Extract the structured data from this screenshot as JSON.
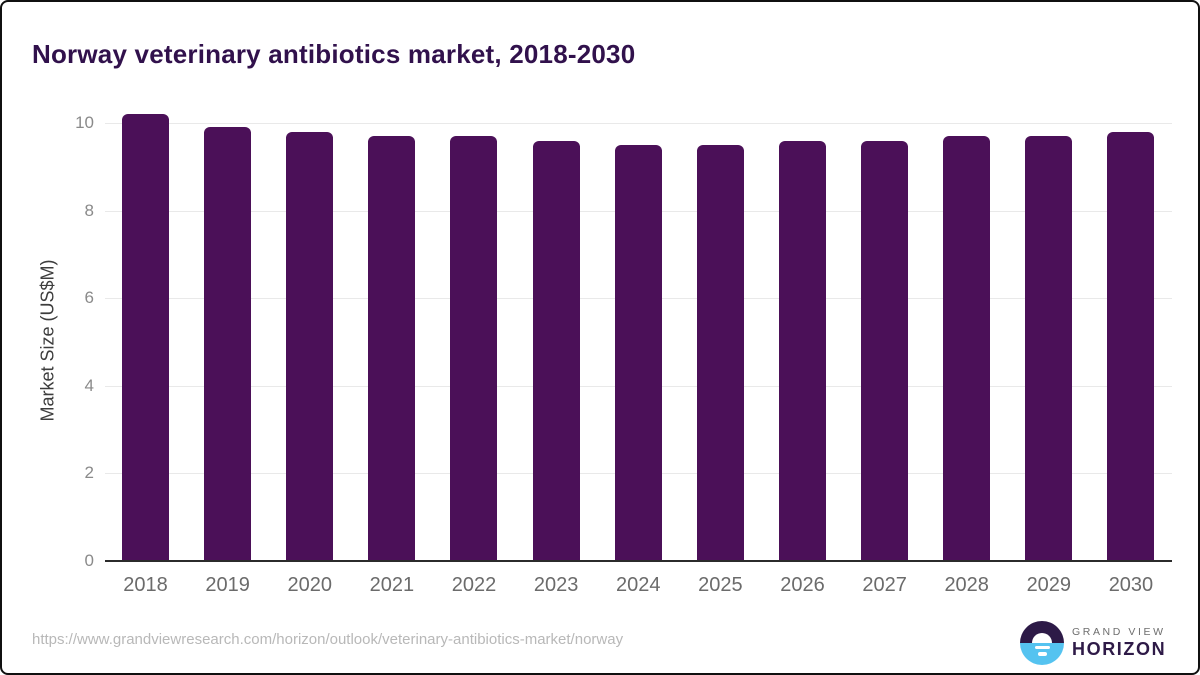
{
  "header": {
    "title": "Norway veterinary antibiotics market, 2018-2030"
  },
  "chart_data": {
    "type": "bar",
    "title": "Norway veterinary antibiotics market, 2018-2030",
    "categories": [
      "2018",
      "2019",
      "2020",
      "2021",
      "2022",
      "2023",
      "2024",
      "2025",
      "2026",
      "2027",
      "2028",
      "2029",
      "2030"
    ],
    "values": [
      10.2,
      9.9,
      9.8,
      9.7,
      9.7,
      9.6,
      9.5,
      9.5,
      9.6,
      9.6,
      9.7,
      9.7,
      9.8
    ],
    "xlabel": "",
    "ylabel": "Market Size (US$M)",
    "ylim": [
      0,
      10.2
    ],
    "yticks": [
      0,
      2,
      4,
      6,
      8,
      10
    ],
    "grid": true,
    "legend": "none",
    "bar_color": "#4b1058"
  },
  "colors": {
    "bar": "#4b1058",
    "title_text": "#31114c",
    "gridline": "#e9e9e9",
    "axis_line": "#2b2b2b",
    "tick_text": "#8a8a8a",
    "xlabel_text": "#6b6b6b",
    "url_text": "#b8b8b8",
    "logo_dark": "#2d1a47",
    "logo_blue": "#55c3f0"
  },
  "footer": {
    "source_url": "https://www.grandviewresearch.com/horizon/outlook/veterinary-antibiotics-market/norway"
  },
  "logo": {
    "line1": "GRAND VIEW",
    "line2": "HORIZON"
  }
}
